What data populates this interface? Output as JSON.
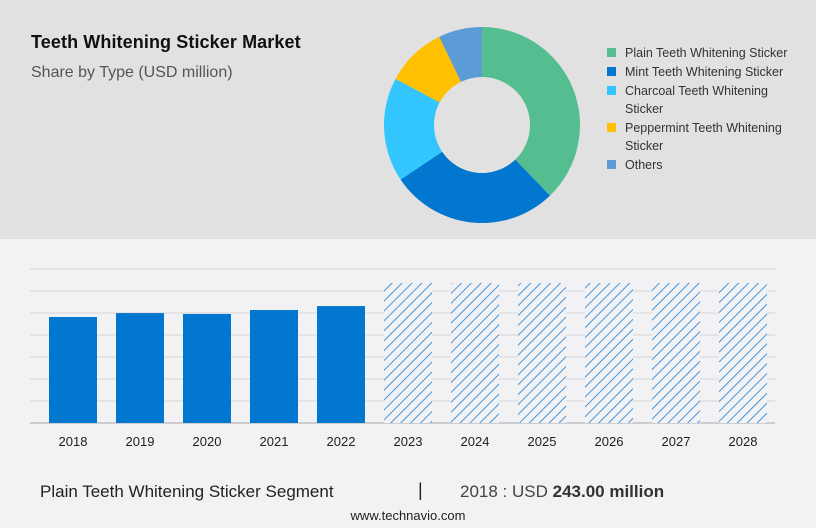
{
  "header": {
    "title": "Teeth Whitening Sticker Market",
    "subtitle": "Share by Type (USD million)"
  },
  "legend": [
    {
      "label": "Plain Teeth Whitening Sticker",
      "color": "#55be91"
    },
    {
      "label": "Mint Teeth Whitening Sticker",
      "color": "#0277cf"
    },
    {
      "label": "Charcoal Teeth Whitening Sticker",
      "color": "#33c6fe"
    },
    {
      "label": "Peppermint Teeth Whitening Sticker",
      "color": "#fec000"
    },
    {
      "label": "Others",
      "color": "#5b9bd6"
    }
  ],
  "footer": {
    "segment": "Plain Teeth Whitening Sticker Segment",
    "separator": "|",
    "value_prefix": "2018 : USD ",
    "value_bold": "243.00 million",
    "url": "www.technavio.com"
  },
  "chart_data": [
    {
      "type": "pie",
      "title": "Teeth Whitening Sticker Market",
      "subtitle": "Share by Type (USD million)",
      "donut": true,
      "categories": [
        "Plain Teeth Whitening Sticker",
        "Mint Teeth Whitening Sticker",
        "Charcoal Teeth Whitening Sticker",
        "Peppermint Teeth Whitening Sticker",
        "Others"
      ],
      "values": [
        37.8,
        27.8,
        17.2,
        10.0,
        7.2
      ],
      "colors": [
        "#55be91",
        "#0277cf",
        "#33c6fe",
        "#fec000",
        "#5b9bd6"
      ],
      "legend_position": "right"
    },
    {
      "type": "bar",
      "title": "Plain Teeth Whitening Sticker Segment",
      "categories": [
        "2018",
        "2019",
        "2020",
        "2021",
        "2022",
        "2023",
        "2024",
        "2025",
        "2026",
        "2027",
        "2028"
      ],
      "values": [
        243,
        252,
        250,
        259,
        268,
        null,
        null,
        null,
        null,
        null,
        null
      ],
      "forecast": [
        false,
        false,
        false,
        false,
        false,
        true,
        true,
        true,
        true,
        true,
        true
      ],
      "forecast_placeholder_height": 322,
      "xlabel": "",
      "ylabel": "USD million",
      "ylim": [
        0,
        352
      ],
      "grid": true,
      "grid_step": 50.3,
      "annotation": "2018 : USD 243.00 million",
      "color": "#0277cf"
    }
  ]
}
